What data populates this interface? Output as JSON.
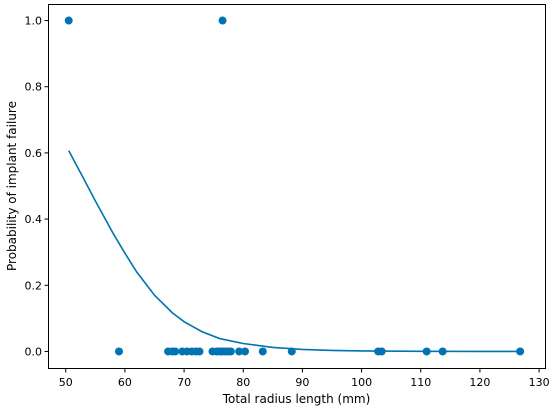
{
  "chart_data": {
    "type": "scatter",
    "title": "",
    "xlabel": "Total radius length (mm)",
    "ylabel": "Probability of implant failure",
    "xlim": [
      47,
      131
    ],
    "ylim": [
      -0.05,
      1.05
    ],
    "xticks": [
      50,
      60,
      70,
      80,
      90,
      100,
      110,
      120,
      130
    ],
    "yticks": [
      0.0,
      0.2,
      0.4,
      0.6,
      0.8,
      1.0
    ],
    "xtick_labels": [
      "50",
      "60",
      "70",
      "80",
      "90",
      "100",
      "110",
      "120",
      "130"
    ],
    "ytick_labels": [
      "0.0",
      "0.2",
      "0.4",
      "0.6",
      "0.8",
      "1.0"
    ],
    "grid": false,
    "legend": "none",
    "series": [
      {
        "type": "scatter",
        "color": "#0173b2",
        "points": [
          {
            "x": 50.5,
            "y": 1.0
          },
          {
            "x": 76.5,
            "y": 1.0
          },
          {
            "x": 59.0,
            "y": 0.0
          },
          {
            "x": 67.3,
            "y": 0.0
          },
          {
            "x": 68.0,
            "y": 0.0
          },
          {
            "x": 68.5,
            "y": 0.0
          },
          {
            "x": 69.7,
            "y": 0.0
          },
          {
            "x": 70.5,
            "y": 0.0
          },
          {
            "x": 71.3,
            "y": 0.0
          },
          {
            "x": 72.0,
            "y": 0.0
          },
          {
            "x": 72.6,
            "y": 0.0
          },
          {
            "x": 74.8,
            "y": 0.0
          },
          {
            "x": 75.5,
            "y": 0.0
          },
          {
            "x": 76.0,
            "y": 0.0
          },
          {
            "x": 76.4,
            "y": 0.0
          },
          {
            "x": 76.9,
            "y": 0.0
          },
          {
            "x": 77.4,
            "y": 0.0
          },
          {
            "x": 77.9,
            "y": 0.0
          },
          {
            "x": 79.3,
            "y": 0.0
          },
          {
            "x": 80.3,
            "y": 0.0
          },
          {
            "x": 83.3,
            "y": 0.0
          },
          {
            "x": 88.2,
            "y": 0.0
          },
          {
            "x": 102.8,
            "y": 0.0
          },
          {
            "x": 103.4,
            "y": 0.0
          },
          {
            "x": 111.0,
            "y": 0.0
          },
          {
            "x": 113.7,
            "y": 0.0
          },
          {
            "x": 126.8,
            "y": 0.0
          }
        ]
      },
      {
        "type": "line",
        "color": "#0173b2",
        "points": [
          {
            "x": 50.5,
            "y": 0.607
          },
          {
            "x": 53.0,
            "y": 0.523
          },
          {
            "x": 55.0,
            "y": 0.455
          },
          {
            "x": 58.0,
            "y": 0.357
          },
          {
            "x": 60.0,
            "y": 0.297
          },
          {
            "x": 62.0,
            "y": 0.24
          },
          {
            "x": 65.0,
            "y": 0.17
          },
          {
            "x": 68.0,
            "y": 0.117
          },
          {
            "x": 70.0,
            "y": 0.09
          },
          {
            "x": 73.0,
            "y": 0.06
          },
          {
            "x": 76.0,
            "y": 0.039
          },
          {
            "x": 80.0,
            "y": 0.024
          },
          {
            "x": 85.0,
            "y": 0.012
          },
          {
            "x": 90.0,
            "y": 0.006
          },
          {
            "x": 95.0,
            "y": 0.003
          },
          {
            "x": 100.0,
            "y": 0.0015
          },
          {
            "x": 110.0,
            "y": 0.0004
          },
          {
            "x": 120.0,
            "y": 0.0001
          },
          {
            "x": 127.0,
            "y": 0.0
          }
        ]
      }
    ]
  }
}
